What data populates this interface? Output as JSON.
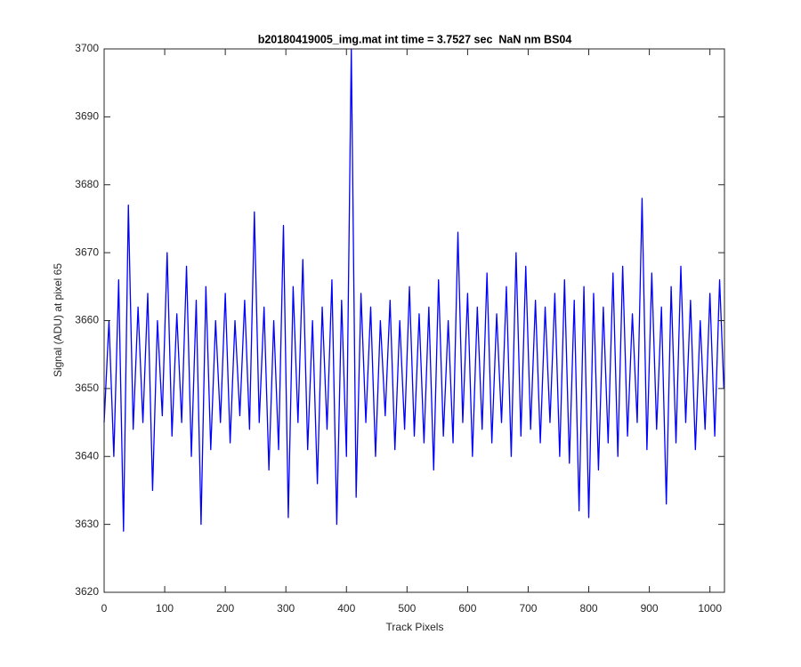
{
  "chart_data": {
    "type": "line",
    "title": "b20180419005_img.mat int time = 3.7527 sec  NaN nm BS04",
    "x_label": "Track Pixels",
    "y_label": "Signal (ADU) at pixel 65",
    "x": [
      0,
      8,
      16,
      24,
      32,
      40,
      48,
      56,
      64,
      72,
      80,
      88,
      96,
      104,
      112,
      120,
      128,
      136,
      144,
      152,
      160,
      168,
      176,
      184,
      192,
      200,
      208,
      216,
      224,
      232,
      240,
      248,
      256,
      264,
      272,
      280,
      288,
      296,
      304,
      312,
      320,
      328,
      336,
      344,
      352,
      360,
      368,
      376,
      384,
      392,
      400,
      408,
      416,
      424,
      432,
      440,
      448,
      456,
      464,
      472,
      480,
      488,
      496,
      504,
      512,
      520,
      528,
      536,
      544,
      552,
      560,
      568,
      576,
      584,
      592,
      600,
      608,
      616,
      624,
      632,
      640,
      648,
      656,
      664,
      672,
      680,
      688,
      696,
      704,
      712,
      720,
      728,
      736,
      744,
      752,
      760,
      768,
      776,
      784,
      792,
      800,
      808,
      816,
      824,
      832,
      840,
      848,
      856,
      864,
      872,
      880,
      888,
      896,
      904,
      912,
      920,
      928,
      936,
      944,
      952,
      960,
      968,
      976,
      984,
      992,
      1000,
      1008,
      1016,
      1023
    ],
    "series": [
      {
        "color": "#0000ff",
        "values": [
          3645,
          3660,
          3640,
          3666,
          3629,
          3677,
          3644,
          3662,
          3645,
          3664,
          3635,
          3660,
          3646,
          3670,
          3643,
          3661,
          3645,
          3668,
          3640,
          3663,
          3630,
          3665,
          3641,
          3660,
          3645,
          3664,
          3642,
          3660,
          3646,
          3663,
          3644,
          3676,
          3645,
          3662,
          3638,
          3660,
          3641,
          3674,
          3631,
          3665,
          3645,
          3669,
          3641,
          3660,
          3636,
          3662,
          3644,
          3666,
          3630,
          3663,
          3640,
          3700,
          3634,
          3664,
          3645,
          3662,
          3640,
          3660,
          3646,
          3663,
          3641,
          3660,
          3644,
          3665,
          3643,
          3661,
          3642,
          3662,
          3638,
          3666,
          3643,
          3660,
          3642,
          3673,
          3645,
          3664,
          3640,
          3662,
          3644,
          3667,
          3642,
          3661,
          3645,
          3665,
          3640,
          3670,
          3643,
          3668,
          3644,
          3663,
          3642,
          3662,
          3645,
          3664,
          3640,
          3666,
          3639,
          3663,
          3632,
          3665,
          3631,
          3664,
          3638,
          3662,
          3642,
          3667,
          3640,
          3668,
          3643,
          3661,
          3645,
          3678,
          3641,
          3667,
          3644,
          3662,
          3633,
          3665,
          3642,
          3668,
          3645,
          3663,
          3641,
          3660,
          3644,
          3664,
          3643,
          3666,
          3650
        ]
      }
    ],
    "xlim": [
      0,
      1024
    ],
    "xticks": [
      0,
      100,
      200,
      300,
      400,
      500,
      600,
      700,
      800,
      900,
      1000
    ],
    "ylim": [
      3620,
      3700
    ],
    "yticks": [
      3620,
      3630,
      3640,
      3650,
      3660,
      3670,
      3680,
      3690,
      3700
    ]
  }
}
